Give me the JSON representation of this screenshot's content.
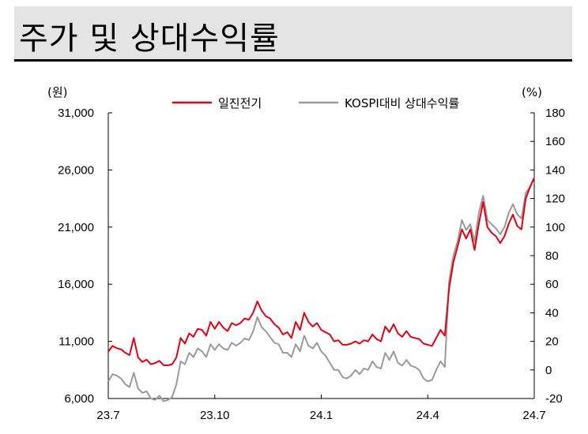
{
  "title": "주가 및 상대수익률",
  "chart_data": {
    "type": "line",
    "left_unit": "(원)",
    "right_unit": "(%)",
    "y_left": {
      "min": 6000,
      "max": 31000,
      "ticks": [
        "6,000",
        "11,000",
        "16,000",
        "21,000",
        "26,000",
        "31,000"
      ]
    },
    "y_right": {
      "min": -20,
      "max": 180,
      "ticks": [
        "-20",
        "0",
        "20",
        "40",
        "60",
        "80",
        "100",
        "120",
        "140",
        "160",
        "180"
      ]
    },
    "x_ticks": [
      "23.7",
      "23.10",
      "24.1",
      "24.4",
      "24.7"
    ],
    "colors": {
      "price": "#e60012",
      "relative": "#9a9a9a"
    },
    "series": [
      {
        "name": "일진전기",
        "axis": "left",
        "points": [
          [
            0.0,
            10100
          ],
          [
            0.01,
            10600
          ],
          [
            0.02,
            10400
          ],
          [
            0.03,
            10300
          ],
          [
            0.04,
            10000
          ],
          [
            0.05,
            9800
          ],
          [
            0.06,
            11300
          ],
          [
            0.07,
            9600
          ],
          [
            0.08,
            9200
          ],
          [
            0.09,
            9400
          ],
          [
            0.1,
            9000
          ],
          [
            0.11,
            9100
          ],
          [
            0.12,
            9300
          ],
          [
            0.13,
            8900
          ],
          [
            0.14,
            8900
          ],
          [
            0.15,
            9000
          ],
          [
            0.16,
            9600
          ],
          [
            0.17,
            11300
          ],
          [
            0.18,
            10800
          ],
          [
            0.19,
            11700
          ],
          [
            0.2,
            11400
          ],
          [
            0.21,
            12100
          ],
          [
            0.22,
            12000
          ],
          [
            0.23,
            11500
          ],
          [
            0.24,
            12700
          ],
          [
            0.25,
            12100
          ],
          [
            0.26,
            12700
          ],
          [
            0.27,
            12200
          ],
          [
            0.28,
            11900
          ],
          [
            0.29,
            12600
          ],
          [
            0.3,
            12400
          ],
          [
            0.31,
            12600
          ],
          [
            0.32,
            13000
          ],
          [
            0.33,
            12900
          ],
          [
            0.34,
            13500
          ],
          [
            0.35,
            14500
          ],
          [
            0.36,
            13700
          ],
          [
            0.37,
            13200
          ],
          [
            0.38,
            13000
          ],
          [
            0.39,
            12500
          ],
          [
            0.4,
            12200
          ],
          [
            0.41,
            11600
          ],
          [
            0.42,
            11800
          ],
          [
            0.43,
            11300
          ],
          [
            0.44,
            12700
          ],
          [
            0.45,
            12000
          ],
          [
            0.46,
            13500
          ],
          [
            0.47,
            12700
          ],
          [
            0.48,
            12300
          ],
          [
            0.49,
            12600
          ],
          [
            0.5,
            12000
          ],
          [
            0.51,
            11800
          ],
          [
            0.52,
            11600
          ],
          [
            0.53,
            11000
          ],
          [
            0.54,
            11100
          ],
          [
            0.55,
            10700
          ],
          [
            0.56,
            10700
          ],
          [
            0.57,
            10800
          ],
          [
            0.58,
            11000
          ],
          [
            0.59,
            10800
          ],
          [
            0.6,
            11100
          ],
          [
            0.61,
            11000
          ],
          [
            0.62,
            11600
          ],
          [
            0.63,
            11200
          ],
          [
            0.64,
            11000
          ],
          [
            0.65,
            12300
          ],
          [
            0.66,
            11800
          ],
          [
            0.67,
            12500
          ],
          [
            0.68,
            11700
          ],
          [
            0.69,
            11400
          ],
          [
            0.7,
            11900
          ],
          [
            0.71,
            11400
          ],
          [
            0.72,
            11300
          ],
          [
            0.73,
            11200
          ],
          [
            0.74,
            10800
          ],
          [
            0.75,
            10700
          ],
          [
            0.76,
            10600
          ],
          [
            0.77,
            11300
          ],
          [
            0.78,
            12000
          ],
          [
            0.79,
            11500
          ],
          [
            0.8,
            15600
          ],
          [
            0.81,
            17900
          ],
          [
            0.82,
            19300
          ],
          [
            0.83,
            20800
          ],
          [
            0.84,
            20000
          ],
          [
            0.85,
            20800
          ],
          [
            0.86,
            19000
          ],
          [
            0.87,
            21300
          ],
          [
            0.88,
            23200
          ],
          [
            0.89,
            21000
          ],
          [
            0.9,
            20500
          ],
          [
            0.91,
            20200
          ],
          [
            0.92,
            19600
          ],
          [
            0.93,
            20200
          ],
          [
            0.94,
            21300
          ],
          [
            0.95,
            22100
          ],
          [
            0.96,
            21100
          ],
          [
            0.97,
            20800
          ],
          [
            0.98,
            23500
          ],
          [
            0.99,
            24500
          ],
          [
            1.0,
            25300
          ]
        ]
      },
      {
        "name": "KOSPI대비 상대수익률",
        "axis": "right",
        "points": [
          [
            0.0,
            -8
          ],
          [
            0.01,
            -3
          ],
          [
            0.02,
            -4
          ],
          [
            0.03,
            -6
          ],
          [
            0.04,
            -10
          ],
          [
            0.05,
            -12
          ],
          [
            0.06,
            -2
          ],
          [
            0.07,
            -13
          ],
          [
            0.08,
            -16
          ],
          [
            0.09,
            -15
          ],
          [
            0.1,
            -20
          ],
          [
            0.11,
            -21
          ],
          [
            0.12,
            -18
          ],
          [
            0.13,
            -22
          ],
          [
            0.14,
            -21
          ],
          [
            0.15,
            -19
          ],
          [
            0.16,
            -10
          ],
          [
            0.17,
            6
          ],
          [
            0.18,
            4
          ],
          [
            0.19,
            12
          ],
          [
            0.2,
            9
          ],
          [
            0.21,
            15
          ],
          [
            0.22,
            13
          ],
          [
            0.23,
            9
          ],
          [
            0.24,
            18
          ],
          [
            0.25,
            14
          ],
          [
            0.26,
            18
          ],
          [
            0.27,
            15
          ],
          [
            0.28,
            14
          ],
          [
            0.29,
            19
          ],
          [
            0.3,
            17
          ],
          [
            0.31,
            19
          ],
          [
            0.32,
            22
          ],
          [
            0.33,
            21
          ],
          [
            0.34,
            27
          ],
          [
            0.35,
            37
          ],
          [
            0.36,
            30
          ],
          [
            0.37,
            27
          ],
          [
            0.38,
            23
          ],
          [
            0.39,
            19
          ],
          [
            0.4,
            18
          ],
          [
            0.41,
            12
          ],
          [
            0.42,
            12
          ],
          [
            0.43,
            9
          ],
          [
            0.44,
            18
          ],
          [
            0.45,
            13
          ],
          [
            0.46,
            24
          ],
          [
            0.47,
            17
          ],
          [
            0.48,
            15
          ],
          [
            0.49,
            19
          ],
          [
            0.5,
            13
          ],
          [
            0.51,
            10
          ],
          [
            0.52,
            5
          ],
          [
            0.53,
            0
          ],
          [
            0.54,
            0
          ],
          [
            0.55,
            -5
          ],
          [
            0.56,
            -6
          ],
          [
            0.57,
            -4
          ],
          [
            0.58,
            0
          ],
          [
            0.59,
            -3
          ],
          [
            0.6,
            1
          ],
          [
            0.61,
            0
          ],
          [
            0.62,
            6
          ],
          [
            0.63,
            2
          ],
          [
            0.64,
            1
          ],
          [
            0.65,
            12
          ],
          [
            0.66,
            7
          ],
          [
            0.67,
            13
          ],
          [
            0.68,
            5
          ],
          [
            0.69,
            3
          ],
          [
            0.7,
            7
          ],
          [
            0.71,
            3
          ],
          [
            0.72,
            2
          ],
          [
            0.73,
            0
          ],
          [
            0.74,
            -6
          ],
          [
            0.75,
            -8
          ],
          [
            0.76,
            -7
          ],
          [
            0.77,
            0
          ],
          [
            0.78,
            6
          ],
          [
            0.79,
            2
          ],
          [
            0.8,
            62
          ],
          [
            0.81,
            80
          ],
          [
            0.82,
            90
          ],
          [
            0.83,
            105
          ],
          [
            0.84,
            98
          ],
          [
            0.85,
            102
          ],
          [
            0.86,
            90
          ],
          [
            0.87,
            110
          ],
          [
            0.88,
            122
          ],
          [
            0.89,
            105
          ],
          [
            0.9,
            102
          ],
          [
            0.91,
            99
          ],
          [
            0.92,
            95
          ],
          [
            0.93,
            100
          ],
          [
            0.94,
            110
          ],
          [
            0.95,
            116
          ],
          [
            0.96,
            109
          ],
          [
            0.97,
            106
          ],
          [
            0.98,
            124
          ],
          [
            0.99,
            128
          ],
          [
            1.0,
            135
          ]
        ]
      }
    ]
  }
}
